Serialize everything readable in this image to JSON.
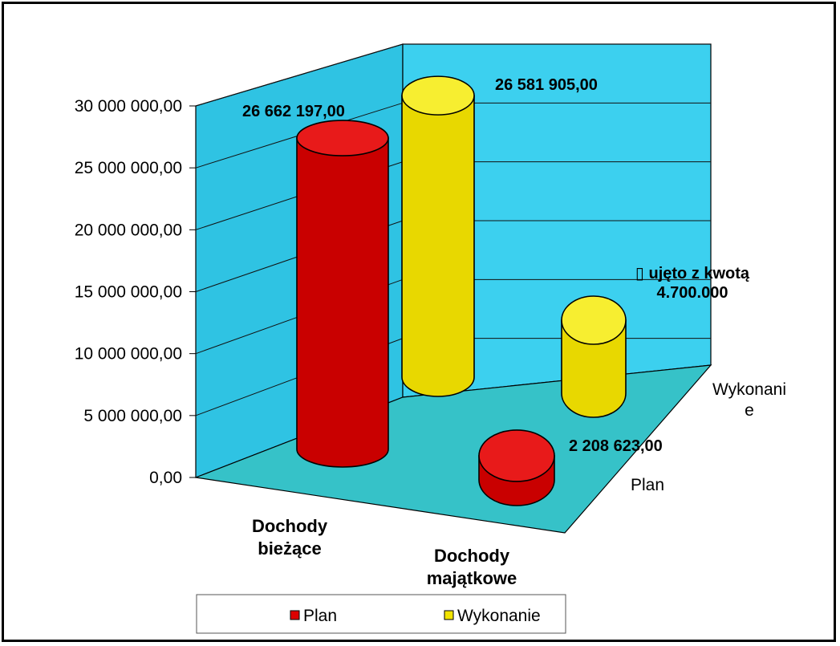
{
  "chart_data": {
    "type": "bar",
    "categories": [
      "Dochody\nbieżące",
      "Dochody\nmajątkowe"
    ],
    "series": [
      {
        "name": "Plan",
        "values": [
          26662197.0,
          2208623.0
        ],
        "color": "#dd0000"
      },
      {
        "name": "Wykonanie",
        "values": [
          26581905.0,
          7000000
        ],
        "color": "#f2e400"
      }
    ],
    "depth_labels": [
      "Plan",
      "Wykonani\ne"
    ],
    "data_labels": [
      "26 662 197,00",
      "26 581 905,00",
      "2 208 623,00"
    ],
    "annotation": "▯ ujęto z kwotą\n4.700.000",
    "ylim": [
      0,
      30000000
    ],
    "yticks": [
      "0,00",
      "5 000 000,00",
      "10 000 000,00",
      "15 000 000,00",
      "20 000 000,00",
      "25 000 000,00",
      "30 000 000,00"
    ],
    "grid": true,
    "legend_position": "bottom",
    "colors": {
      "wall": "#33ccee",
      "floor": "#33bfc4",
      "plan": "#dd0000",
      "wykonanie": "#f2e400"
    }
  }
}
